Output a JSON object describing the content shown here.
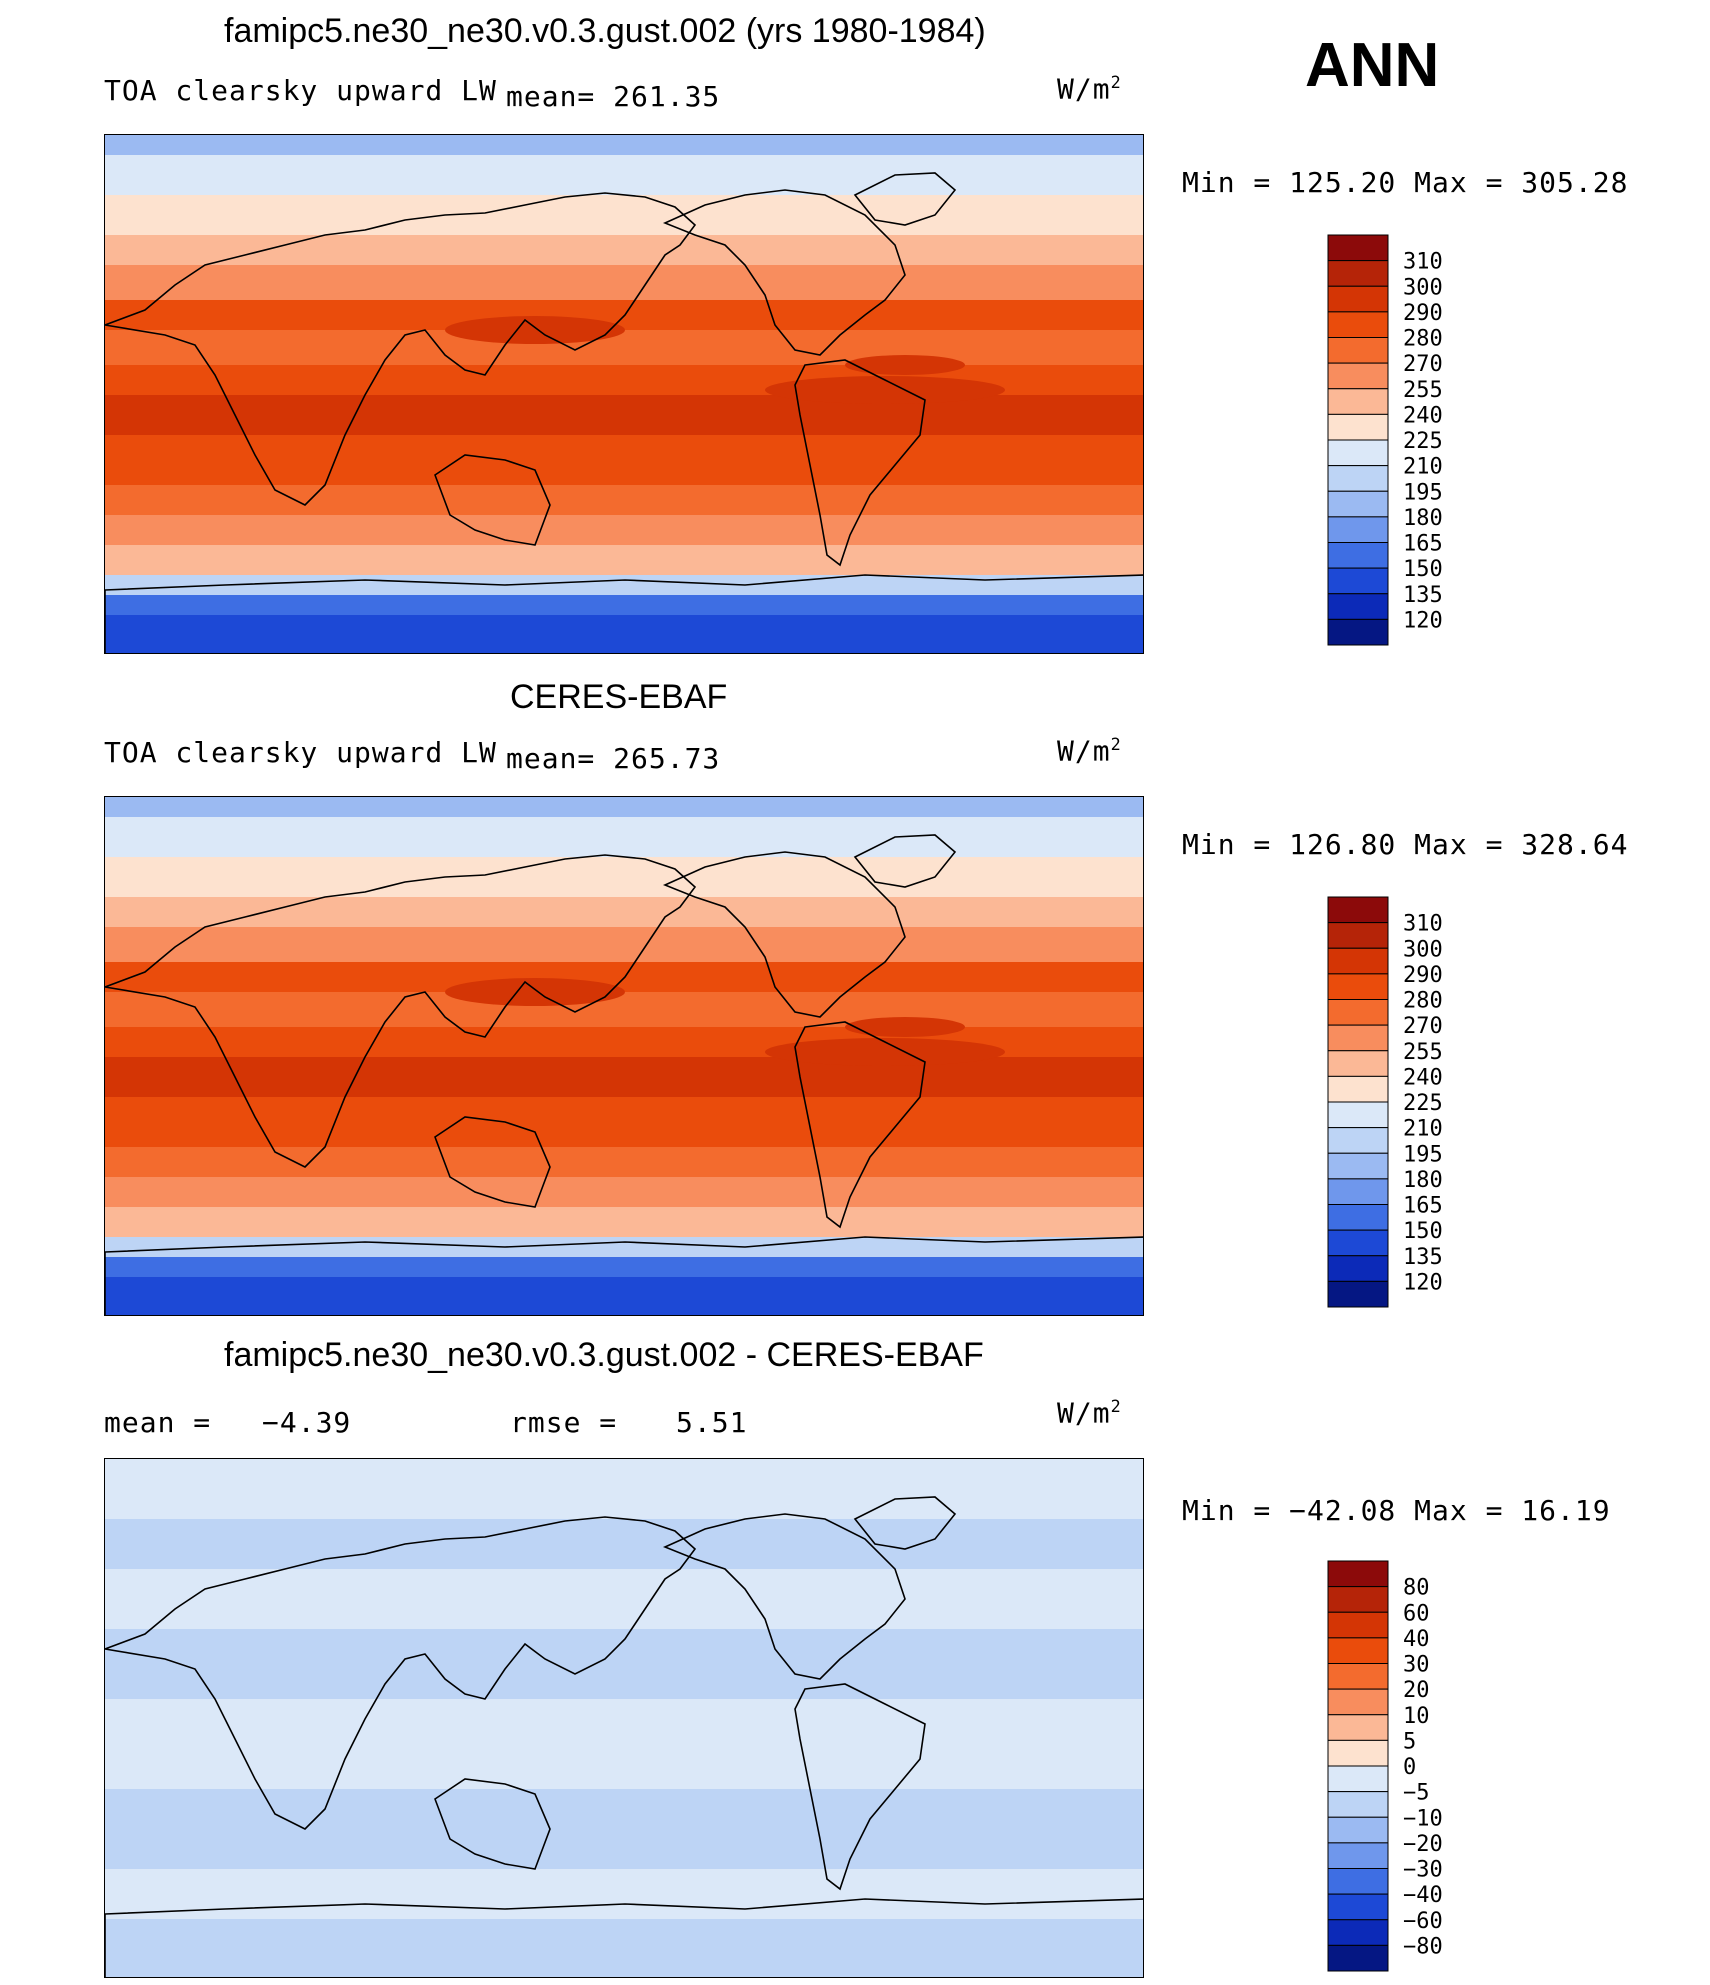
{
  "header": {
    "title_top": "famipc5.ne30_ne30.v0.3.gust.002 (yrs 1980-1984)",
    "season": "ANN"
  },
  "panels": [
    {
      "id": "model",
      "variable": "TOA clearsky upward LW",
      "mean_text": "mean= 261.35",
      "units_base": "W/m",
      "units_exp": "2",
      "minmax": "Min = 125.20 Max = 305.28",
      "levels": [
        "310",
        "300",
        "290",
        "280",
        "270",
        "255",
        "240",
        "225",
        "210",
        "195",
        "180",
        "165",
        "150",
        "135",
        "120"
      ],
      "colors": [
        "#8c0a0a",
        "#b52408",
        "#d43505",
        "#ea4c0c",
        "#f36b2e",
        "#f88d5e",
        "#fbb896",
        "#fde2cf",
        "#dbe8f8",
        "#bdd4f5",
        "#9bbaf2",
        "#6f97ec",
        "#3e6ee3",
        "#1d49d6",
        "#0c2ab8",
        "#051783"
      ]
    },
    {
      "id": "obs",
      "title": "CERES-EBAF",
      "variable": "TOA clearsky upward LW",
      "mean_text": "mean= 265.73",
      "units_base": "W/m",
      "units_exp": "2",
      "minmax": "Min = 126.80 Max = 328.64",
      "levels": [
        "310",
        "300",
        "290",
        "280",
        "270",
        "255",
        "240",
        "225",
        "210",
        "195",
        "180",
        "165",
        "150",
        "135",
        "120"
      ],
      "colors": [
        "#8c0a0a",
        "#b52408",
        "#d43505",
        "#ea4c0c",
        "#f36b2e",
        "#f88d5e",
        "#fbb896",
        "#fde2cf",
        "#dbe8f8",
        "#bdd4f5",
        "#9bbaf2",
        "#6f97ec",
        "#3e6ee3",
        "#1d49d6",
        "#0c2ab8",
        "#051783"
      ]
    },
    {
      "id": "diff",
      "title": "famipc5.ne30_ne30.v0.3.gust.002 - CERES-EBAF",
      "mean_label": "mean =",
      "mean_value": "−4.39",
      "rmse_label": "rmse =",
      "rmse_value": "5.51",
      "units_base": "W/m",
      "units_exp": "2",
      "minmax": "Min = −42.08 Max = 16.19",
      "levels": [
        "80",
        "60",
        "40",
        "30",
        "20",
        "10",
        "5",
        "0",
        "−5",
        "−10",
        "−20",
        "−30",
        "−40",
        "−60",
        "−80"
      ],
      "colors": [
        "#8c0a0a",
        "#b52408",
        "#d43505",
        "#ea4c0c",
        "#f36b2e",
        "#f88d5e",
        "#fbb896",
        "#fde2cf",
        "#dbe8f8",
        "#bdd4f5",
        "#9bbaf2",
        "#6f97ec",
        "#3e6ee3",
        "#1d49d6",
        "#0c2ab8",
        "#051783"
      ]
    }
  ]
}
